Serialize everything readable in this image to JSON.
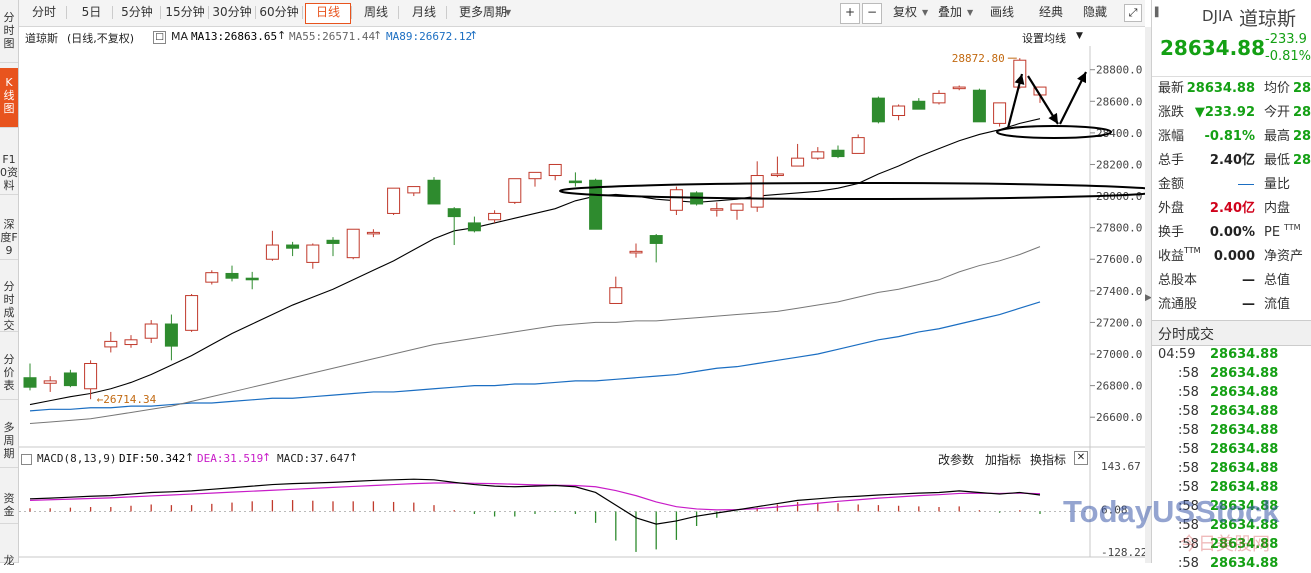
{
  "left_nav": [
    {
      "label": "分时图",
      "active": false
    },
    {
      "label": "K线图",
      "active": true
    },
    {
      "label": "F10资料",
      "active": false
    },
    {
      "label": "深度F9",
      "active": false
    },
    {
      "label": "分时成交",
      "active": false
    },
    {
      "label": "分价表",
      "active": false
    },
    {
      "label": "多周期",
      "active": false
    },
    {
      "label": "资金",
      "active": false
    },
    {
      "label": "龙",
      "active": false
    }
  ],
  "toolbar": {
    "periods": [
      "分时",
      "5日",
      "5分钟",
      "15分钟",
      "30分钟",
      "60分钟",
      "日线",
      "周线",
      "月线",
      "更多周期"
    ],
    "active_period": "日线",
    "zoom_in": "+",
    "zoom_out": "−",
    "right_buttons": [
      "复权",
      "叠加",
      "画线",
      "经典",
      "隐藏"
    ]
  },
  "legend": {
    "instrument": "道琼斯",
    "mode": "(日线,不复权)",
    "indicator": "MA",
    "ma13": "MA13:26863.65",
    "ma55": "MA55:26571.44",
    "ma89": "MA89:26672.12",
    "settings": "设置均线"
  },
  "annotations": {
    "high_label": "28872.80",
    "low_label": "26714.34"
  },
  "macd_legend": {
    "name": "MACD(8,13,9)",
    "dif": "DIF:50.342",
    "dea": "DEA:31.519",
    "macd": "MACD:37.647",
    "buttons": [
      "改参数",
      "加指标",
      "换指标"
    ]
  },
  "right_panel": {
    "code": "DJIA",
    "name": "道琼斯",
    "price": "28634.88",
    "change": "-233.9",
    "change_pct": "-0.81%",
    "stats": [
      {
        "label": "最新",
        "value": "28634.88",
        "color": "down",
        "label2": "均价",
        "value2": "28"
      },
      {
        "label": "涨跌",
        "value": "▼233.92",
        "color": "down",
        "label2": "今开",
        "value2": "28"
      },
      {
        "label": "涨幅",
        "value": "-0.81%",
        "color": "down",
        "label2": "最高",
        "value2": "28"
      },
      {
        "label": "总手",
        "value": "2.40亿",
        "color": "plain",
        "label2": "最低",
        "value2": "28"
      },
      {
        "label": "金额",
        "value": "—",
        "color": "dash",
        "label2": "量比",
        "value2": ""
      },
      {
        "label": "外盘",
        "value": "2.40亿",
        "color": "up",
        "label2": "内盘",
        "value2": ""
      },
      {
        "label": "换手",
        "value": "0.00%",
        "color": "plain",
        "label2": "PE",
        "value2": "TTM"
      },
      {
        "label": "收益",
        "sup": "TTM",
        "value": "0.000",
        "color": "plain",
        "label2": "净资产",
        "value2": ""
      },
      {
        "label": "总股本",
        "value": "—",
        "color": "plain",
        "label2": "总值",
        "value2": ""
      },
      {
        "label": "流通股",
        "value": "—",
        "color": "plain",
        "label2": "流值",
        "value2": ""
      }
    ],
    "ticks_title": "分时成交",
    "ticks": [
      {
        "time": "04:59",
        "price": "28634.88"
      },
      {
        "time": ":58",
        "price": "28634.88"
      },
      {
        "time": ":58",
        "price": "28634.88"
      },
      {
        "time": ":58",
        "price": "28634.88"
      },
      {
        "time": ":58",
        "price": "28634.88"
      },
      {
        "time": ":58",
        "price": "28634.88"
      },
      {
        "time": ":58",
        "price": "28634.88"
      },
      {
        "time": ":58",
        "price": "28634.88"
      },
      {
        "time": ":58",
        "price": "28634.88"
      },
      {
        "time": ":58",
        "price": "28634.88"
      },
      {
        "time": ":58",
        "price": "28634.88"
      },
      {
        "time": ":58",
        "price": "28634.88"
      }
    ]
  },
  "watermark": {
    "line1": "TodayUSStock",
    "line2": "今日美股网"
  },
  "chart_data": {
    "type": "candlestick",
    "ylim": [
      26500,
      28950
    ],
    "yticks": [
      26600,
      26800,
      27000,
      27200,
      27400,
      27600,
      27800,
      28000,
      28200,
      28400,
      28600,
      28800
    ],
    "ytick_labels": [
      "26600.0",
      "26800.0",
      "27000.0",
      "27200.0",
      "27400.0",
      "27600.0",
      "27800.0",
      "28000.0",
      "28200.0",
      "28400.0",
      "28600.0",
      "28800.0"
    ],
    "candles": [
      {
        "o": 26850,
        "h": 26940,
        "l": 26770,
        "c": 26790
      },
      {
        "o": 26815,
        "h": 26860,
        "l": 26760,
        "c": 26830
      },
      {
        "o": 26880,
        "h": 26900,
        "l": 26790,
        "c": 26800
      },
      {
        "o": 26780,
        "h": 26960,
        "l": 26714,
        "c": 26940
      },
      {
        "o": 27045,
        "h": 27140,
        "l": 27010,
        "c": 27080
      },
      {
        "o": 27060,
        "h": 27120,
        "l": 27040,
        "c": 27090
      },
      {
        "o": 27100,
        "h": 27215,
        "l": 27070,
        "c": 27190
      },
      {
        "o": 27190,
        "h": 27250,
        "l": 26960,
        "c": 27050
      },
      {
        "o": 27150,
        "h": 27380,
        "l": 27140,
        "c": 27370
      },
      {
        "o": 27455,
        "h": 27530,
        "l": 27440,
        "c": 27515
      },
      {
        "o": 27510,
        "h": 27560,
        "l": 27460,
        "c": 27480
      },
      {
        "o": 27480,
        "h": 27520,
        "l": 27410,
        "c": 27470
      },
      {
        "o": 27600,
        "h": 27780,
        "l": 27590,
        "c": 27690
      },
      {
        "o": 27690,
        "h": 27710,
        "l": 27620,
        "c": 27670
      },
      {
        "o": 27580,
        "h": 27700,
        "l": 27540,
        "c": 27690
      },
      {
        "o": 27720,
        "h": 27740,
        "l": 27620,
        "c": 27700
      },
      {
        "o": 27610,
        "h": 27790,
        "l": 27600,
        "c": 27790
      },
      {
        "o": 27770,
        "h": 27790,
        "l": 27740,
        "c": 27770
      },
      {
        "o": 27890,
        "h": 28050,
        "l": 27880,
        "c": 28050
      },
      {
        "o": 28020,
        "h": 28060,
        "l": 28000,
        "c": 28060
      },
      {
        "o": 28100,
        "h": 28120,
        "l": 27950,
        "c": 27950
      },
      {
        "o": 27920,
        "h": 27930,
        "l": 27690,
        "c": 27870
      },
      {
        "o": 27830,
        "h": 27870,
        "l": 27770,
        "c": 27780
      },
      {
        "o": 27850,
        "h": 27910,
        "l": 27830,
        "c": 27890
      },
      {
        "o": 27960,
        "h": 28110,
        "l": 27950,
        "c": 28110
      },
      {
        "o": 28110,
        "h": 28150,
        "l": 28060,
        "c": 28150
      },
      {
        "o": 28130,
        "h": 28200,
        "l": 28100,
        "c": 28200
      },
      {
        "o": 28095,
        "h": 28150,
        "l": 28060,
        "c": 28085
      },
      {
        "o": 28100,
        "h": 28110,
        "l": 27790,
        "c": 27790
      },
      {
        "o": 27320,
        "h": 27490,
        "l": 27330,
        "c": 27420
      },
      {
        "o": 27640,
        "h": 27700,
        "l": 27610,
        "c": 27650
      },
      {
        "o": 27750,
        "h": 27760,
        "l": 27580,
        "c": 27700
      },
      {
        "o": 27910,
        "h": 28060,
        "l": 27880,
        "c": 28040
      },
      {
        "o": 28020,
        "h": 28030,
        "l": 27940,
        "c": 27950
      },
      {
        "o": 27920,
        "h": 27960,
        "l": 27870,
        "c": 27920
      },
      {
        "o": 27910,
        "h": 27940,
        "l": 27850,
        "c": 27950
      },
      {
        "o": 27930,
        "h": 28220,
        "l": 27900,
        "c": 28130
      },
      {
        "o": 28130,
        "h": 28250,
        "l": 28120,
        "c": 28140
      },
      {
        "o": 28190,
        "h": 28330,
        "l": 28190,
        "c": 28240
      },
      {
        "o": 28240,
        "h": 28310,
        "l": 28230,
        "c": 28280
      },
      {
        "o": 28290,
        "h": 28320,
        "l": 28240,
        "c": 28250
      },
      {
        "o": 28270,
        "h": 28390,
        "l": 28270,
        "c": 28370
      },
      {
        "o": 28620,
        "h": 28630,
        "l": 28460,
        "c": 28470
      },
      {
        "o": 28510,
        "h": 28580,
        "l": 28480,
        "c": 28570
      },
      {
        "o": 28600,
        "h": 28620,
        "l": 28550,
        "c": 28550
      },
      {
        "o": 28590,
        "h": 28670,
        "l": 28580,
        "c": 28650
      },
      {
        "o": 28680,
        "h": 28700,
        "l": 28670,
        "c": 28690
      },
      {
        "o": 28670,
        "h": 28680,
        "l": 28470,
        "c": 28470
      },
      {
        "o": 28460,
        "h": 28590,
        "l": 28440,
        "c": 28590
      },
      {
        "o": 28690,
        "h": 28873,
        "l": 28680,
        "c": 28860
      },
      {
        "o": 28640,
        "h": 28690,
        "l": 28590,
        "c": 28690
      }
    ],
    "ma13": [
      26680,
      26705,
      26730,
      26750,
      26780,
      26820,
      26870,
      26930,
      26990,
      27060,
      27130,
      27190,
      27250,
      27310,
      27360,
      27410,
      27470,
      27530,
      27590,
      27660,
      27730,
      27780,
      27800,
      27830,
      27860,
      27890,
      27920,
      27970,
      28000,
      28010,
      28000,
      27980,
      27970,
      27960,
      27970,
      27980,
      28000,
      28010,
      28020,
      28030,
      28050,
      28080,
      28140,
      28190,
      28250,
      28300,
      28350,
      28390,
      28420,
      28460,
      28490
    ],
    "ma55": [
      26560,
      26570,
      26580,
      26590,
      26610,
      26630,
      26650,
      26670,
      26700,
      26730,
      26760,
      26790,
      26820,
      26850,
      26880,
      26910,
      26940,
      26970,
      27000,
      27030,
      27060,
      27080,
      27100,
      27120,
      27140,
      27160,
      27180,
      27190,
      27200,
      27200,
      27210,
      27210,
      27220,
      27230,
      27240,
      27250,
      27260,
      27270,
      27290,
      27310,
      27330,
      27360,
      27390,
      27410,
      27440,
      27470,
      27520,
      27560,
      27590,
      27630,
      27680
    ],
    "ma89": [
      26640,
      26650,
      26650,
      26660,
      26660,
      26670,
      26670,
      26680,
      26690,
      26690,
      26700,
      26710,
      26720,
      26720,
      26730,
      26740,
      26750,
      26760,
      26760,
      26770,
      26780,
      26790,
      26800,
      26800,
      26810,
      26810,
      26820,
      26830,
      26830,
      26840,
      26850,
      26860,
      26870,
      26890,
      26910,
      26920,
      26940,
      26960,
      26980,
      27000,
      27030,
      27060,
      27090,
      27110,
      27140,
      27160,
      27190,
      27220,
      27250,
      27290,
      27330
    ],
    "macd_ylim": [
      -128.22,
      143.67
    ],
    "macd_yticks": [
      143.67,
      6.08,
      -128.22
    ],
    "macd_ytick_labels": [
      "143.67",
      "6.08",
      "-128.22"
    ],
    "dif": [
      40,
      42,
      45,
      48,
      50,
      55,
      60,
      62,
      65,
      70,
      75,
      80,
      85,
      88,
      90,
      92,
      95,
      98,
      100,
      102,
      100,
      92,
      85,
      80,
      78,
      80,
      82,
      78,
      60,
      20,
      -20,
      -40,
      -30,
      -15,
      -5,
      5,
      15,
      25,
      35,
      40,
      45,
      48,
      52,
      55,
      58,
      60,
      65,
      60,
      55,
      60,
      52
    ],
    "dea": [
      35,
      37,
      39,
      41,
      43,
      46,
      49,
      52,
      55,
      58,
      61,
      64,
      67,
      70,
      73,
      76,
      79,
      82,
      85,
      88,
      90,
      90,
      89,
      88,
      86,
      84,
      83,
      82,
      78,
      66,
      50,
      30,
      15,
      8,
      5,
      6,
      9,
      14,
      20,
      26,
      32,
      37,
      42,
      46,
      50,
      53,
      57,
      58,
      57,
      58,
      56
    ],
    "macd_hist": [
      10,
      10,
      12,
      14,
      14,
      18,
      22,
      20,
      20,
      24,
      28,
      32,
      36,
      36,
      34,
      32,
      32,
      32,
      30,
      28,
      20,
      4,
      -8,
      -16,
      -16,
      -8,
      -2,
      -8,
      -36,
      -92,
      -128,
      -120,
      -90,
      -46,
      -20,
      -2,
      12,
      22,
      30,
      28,
      26,
      22,
      20,
      18,
      16,
      14,
      16,
      4,
      -4,
      4,
      -8
    ]
  }
}
